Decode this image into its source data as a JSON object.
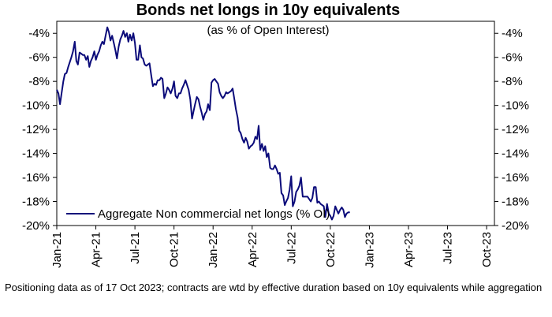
{
  "chart_data": {
    "type": "line",
    "title": "Bonds net longs in 10y equivalents",
    "subtitle": "(as % of Open Interest)",
    "xlabel": "",
    "ylabel": "",
    "ylim": [
      -20,
      -3
    ],
    "yticks": [
      -4,
      -6,
      -8,
      -10,
      -12,
      -14,
      -16,
      -18,
      -20
    ],
    "ytick_labels": [
      "-4%",
      "-6%",
      "-8%",
      "-10%",
      "-12%",
      "-14%",
      "-16%",
      "-18%",
      "-20%"
    ],
    "xticks": [
      {
        "t": 0,
        "label": "Jan-21"
      },
      {
        "t": 3,
        "label": "Apr-21"
      },
      {
        "t": 6,
        "label": "Jul-21"
      },
      {
        "t": 9,
        "label": "Oct-21"
      },
      {
        "t": 12,
        "label": "Jan-22"
      },
      {
        "t": 15,
        "label": "Apr-22"
      },
      {
        "t": 18,
        "label": "Jul-22"
      },
      {
        "t": 21,
        "label": "Oct-22"
      },
      {
        "t": 24,
        "label": "Jan-23"
      },
      {
        "t": 27,
        "label": "Apr-23"
      },
      {
        "t": 30,
        "label": "Jul-23"
      },
      {
        "t": 33,
        "label": "Oct-23"
      }
    ],
    "xlim": [
      0,
      33.6
    ],
    "legend": "bottom-left",
    "series": [
      {
        "name": "Aggregate Non commercial net longs (% OI)",
        "color": "#0b0b7a",
        "points": [
          [
            0.0,
            -8.7
          ],
          [
            0.13,
            -9.0
          ],
          [
            0.25,
            -9.9
          ],
          [
            0.38,
            -8.9
          ],
          [
            0.5,
            -8.0
          ],
          [
            0.62,
            -7.4
          ],
          [
            0.75,
            -7.3
          ],
          [
            0.88,
            -6.8
          ],
          [
            1.0,
            -6.4
          ],
          [
            1.12,
            -6.0
          ],
          [
            1.25,
            -5.5
          ],
          [
            1.38,
            -4.7
          ],
          [
            1.5,
            -6.3
          ],
          [
            1.62,
            -6.6
          ],
          [
            1.75,
            -5.6
          ],
          [
            1.88,
            -5.7
          ],
          [
            2.0,
            -5.8
          ],
          [
            2.12,
            -5.8
          ],
          [
            2.25,
            -6.2
          ],
          [
            2.38,
            -5.9
          ],
          [
            2.5,
            -6.8
          ],
          [
            2.62,
            -6.3
          ],
          [
            2.75,
            -6.0
          ],
          [
            2.88,
            -5.5
          ],
          [
            3.0,
            -6.2
          ],
          [
            3.12,
            -5.8
          ],
          [
            3.25,
            -5.5
          ],
          [
            3.38,
            -5.0
          ],
          [
            3.5,
            -4.7
          ],
          [
            3.62,
            -4.9
          ],
          [
            3.75,
            -4.2
          ],
          [
            3.88,
            -3.5
          ],
          [
            4.0,
            -3.9
          ],
          [
            4.12,
            -4.6
          ],
          [
            4.25,
            -4.2
          ],
          [
            4.38,
            -4.8
          ],
          [
            4.5,
            -5.4
          ],
          [
            4.62,
            -6.1
          ],
          [
            4.75,
            -5.1
          ],
          [
            4.88,
            -4.5
          ],
          [
            5.0,
            -4.2
          ],
          [
            5.12,
            -3.8
          ],
          [
            5.25,
            -4.3
          ],
          [
            5.38,
            -4.0
          ],
          [
            5.5,
            -4.7
          ],
          [
            5.62,
            -4.1
          ],
          [
            5.75,
            -4.6
          ],
          [
            5.88,
            -4.0
          ],
          [
            6.0,
            -4.8
          ],
          [
            6.12,
            -6.2
          ],
          [
            6.25,
            -6.2
          ],
          [
            6.38,
            -5.0
          ],
          [
            6.5,
            -6.0
          ],
          [
            6.62,
            -6.1
          ],
          [
            6.75,
            -6.6
          ],
          [
            6.88,
            -6.7
          ],
          [
            7.0,
            -6.6
          ],
          [
            7.12,
            -6.5
          ],
          [
            7.25,
            -7.5
          ],
          [
            7.38,
            -8.4
          ],
          [
            7.5,
            -8.2
          ],
          [
            7.62,
            -8.3
          ],
          [
            7.75,
            -7.9
          ],
          [
            7.88,
            -7.9
          ],
          [
            8.0,
            -7.7
          ],
          [
            8.12,
            -7.8
          ],
          [
            8.25,
            -9.4
          ],
          [
            8.38,
            -9.0
          ],
          [
            8.5,
            -8.5
          ],
          [
            8.62,
            -8.7
          ],
          [
            8.75,
            -9.0
          ],
          [
            8.88,
            -8.6
          ],
          [
            9.0,
            -8.0
          ],
          [
            9.12,
            -9.2
          ],
          [
            9.25,
            -9.4
          ],
          [
            9.38,
            -9.0
          ],
          [
            9.5,
            -9.0
          ],
          [
            9.62,
            -8.6
          ],
          [
            9.75,
            -8.3
          ],
          [
            9.88,
            -7.9
          ],
          [
            10.0,
            -8.3
          ],
          [
            10.12,
            -8.7
          ],
          [
            10.25,
            -9.5
          ],
          [
            10.38,
            -11.1
          ],
          [
            10.5,
            -10.5
          ],
          [
            10.62,
            -9.9
          ],
          [
            10.75,
            -9.3
          ],
          [
            10.88,
            -9.5
          ],
          [
            11.0,
            -10.1
          ],
          [
            11.12,
            -10.6
          ],
          [
            11.25,
            -11.2
          ],
          [
            11.38,
            -10.7
          ],
          [
            11.5,
            -10.5
          ],
          [
            11.62,
            -9.9
          ],
          [
            11.75,
            -10.4
          ],
          [
            11.88,
            -8.1
          ],
          [
            12.0,
            -7.9
          ],
          [
            12.12,
            -7.8
          ],
          [
            12.25,
            -8.0
          ],
          [
            12.38,
            -8.2
          ],
          [
            12.5,
            -8.9
          ],
          [
            12.62,
            -9.2
          ],
          [
            12.75,
            -9.4
          ],
          [
            12.88,
            -9.2
          ],
          [
            13.0,
            -8.9
          ],
          [
            13.12,
            -9.0
          ],
          [
            13.25,
            -8.9
          ],
          [
            13.38,
            -8.8
          ],
          [
            13.5,
            -8.6
          ],
          [
            13.62,
            -9.4
          ],
          [
            13.75,
            -10.3
          ],
          [
            13.88,
            -11.0
          ],
          [
            14.0,
            -12.1
          ],
          [
            14.12,
            -12.3
          ],
          [
            14.25,
            -12.8
          ],
          [
            14.38,
            -13.1
          ],
          [
            14.5,
            -12.7
          ],
          [
            14.62,
            -13.0
          ],
          [
            14.75,
            -13.6
          ],
          [
            14.88,
            -13.4
          ],
          [
            15.0,
            -13.3
          ],
          [
            15.12,
            -13.1
          ],
          [
            15.25,
            -12.6
          ],
          [
            15.38,
            -12.8
          ],
          [
            15.5,
            -11.7
          ],
          [
            15.62,
            -13.7
          ],
          [
            15.75,
            -13.2
          ],
          [
            15.88,
            -13.8
          ],
          [
            16.0,
            -13.4
          ],
          [
            16.12,
            -14.3
          ],
          [
            16.25,
            -14.0
          ],
          [
            16.38,
            -15.2
          ],
          [
            16.5,
            -15.3
          ],
          [
            16.62,
            -15.3
          ],
          [
            16.75,
            -15.0
          ],
          [
            16.88,
            -15.3
          ],
          [
            17.0,
            -15.7
          ],
          [
            17.12,
            -15.6
          ],
          [
            17.25,
            -17.3
          ],
          [
            17.38,
            -17.5
          ],
          [
            17.5,
            -18.3
          ],
          [
            17.62,
            -18.0
          ],
          [
            17.75,
            -17.7
          ],
          [
            17.88,
            -17.0
          ],
          [
            18.0,
            -15.9
          ],
          [
            18.12,
            -18.4
          ],
          [
            18.25,
            -18.0
          ],
          [
            18.38,
            -17.2
          ],
          [
            18.5,
            -17.0
          ],
          [
            18.62,
            -16.7
          ],
          [
            18.75,
            -16.0
          ],
          [
            18.88,
            -17.6
          ],
          [
            19.0,
            -17.6
          ],
          [
            19.12,
            -17.6
          ],
          [
            19.25,
            -17.6
          ],
          [
            19.38,
            -17.8
          ],
          [
            19.5,
            -18.0
          ],
          [
            19.62,
            -17.7
          ],
          [
            19.75,
            -16.8
          ],
          [
            19.88,
            -16.8
          ],
          [
            20.0,
            -18.1
          ],
          [
            20.12,
            -18.0
          ],
          [
            20.25,
            -18.2
          ],
          [
            20.38,
            -18.3
          ],
          [
            20.5,
            -18.4
          ],
          [
            20.62,
            -19.3
          ],
          [
            20.75,
            -18.2
          ],
          [
            20.88,
            -19.0
          ],
          [
            21.0,
            -19.2
          ],
          [
            21.12,
            -19.5
          ],
          [
            21.25,
            -19.2
          ],
          [
            21.38,
            -18.4
          ],
          [
            21.5,
            -18.7
          ],
          [
            21.62,
            -19.0
          ],
          [
            21.75,
            -18.7
          ],
          [
            21.88,
            -18.5
          ],
          [
            22.0,
            -18.7
          ],
          [
            22.12,
            -19.3
          ],
          [
            22.25,
            -19.0
          ],
          [
            22.38,
            -18.9
          ],
          [
            22.5,
            -18.9
          ]
        ]
      }
    ]
  },
  "footnote": "Positioning data as of 17 Oct 2023; contracts are wtd by effective duration based on 10y equivalents while aggregation"
}
